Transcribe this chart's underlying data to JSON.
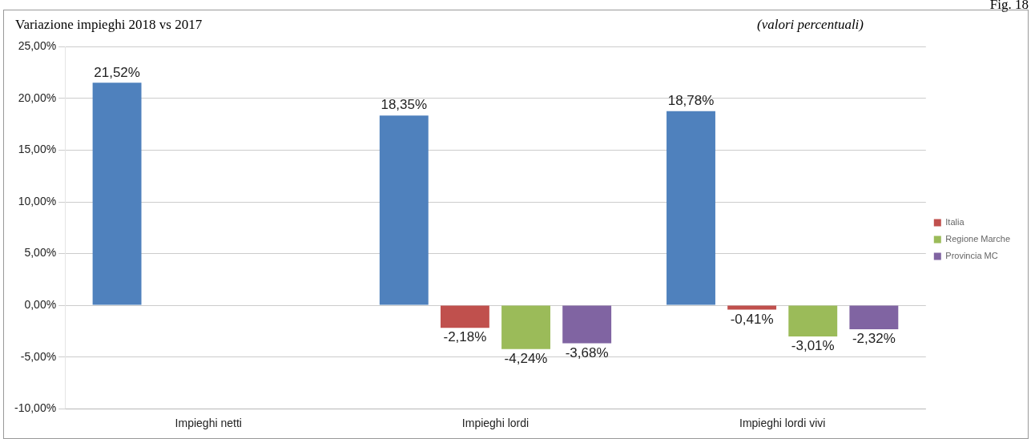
{
  "chart_data": {
    "type": "bar",
    "title": "Variazione impieghi 2018 vs 2017",
    "subtitle": "(valori percentuali)",
    "annotations": [
      "Fig. 18"
    ],
    "categories": [
      "Impieghi netti",
      "Impieghi lordi",
      "Impieghi lordi vivi"
    ],
    "series": [
      {
        "color": "#4f81bd",
        "values": [
          21.52,
          18.35,
          18.78
        ],
        "value_labels": [
          "21,52%",
          "18,35%",
          "18,78%"
        ]
      },
      {
        "name": "Italia",
        "color": "#c0504d",
        "values": [
          null,
          -2.18,
          -0.41
        ],
        "value_labels": [
          null,
          "-2,18%",
          "-0,41%"
        ]
      },
      {
        "name": "Regione Marche",
        "color": "#9bbb59",
        "values": [
          null,
          -4.24,
          -3.01
        ],
        "value_labels": [
          null,
          "-4,24%",
          "-3,01%"
        ]
      },
      {
        "name": "Provincia MC",
        "color": "#8064a2",
        "values": [
          null,
          -3.68,
          -2.32
        ],
        "value_labels": [
          null,
          "-3,68%",
          "-2,32%"
        ]
      }
    ],
    "ylim": [
      -10,
      25
    ],
    "yticks": [
      {
        "value": -10,
        "label": "-10,00%"
      },
      {
        "value": -5,
        "label": "-5,00%"
      },
      {
        "value": 0,
        "label": "0,00%"
      },
      {
        "value": 5,
        "label": "5,00%"
      },
      {
        "value": 10,
        "label": "10,00%"
      },
      {
        "value": 15,
        "label": "15,00%"
      },
      {
        "value": 20,
        "label": "20,00%"
      },
      {
        "value": 25,
        "label": "25,00%"
      }
    ],
    "grid": "y",
    "legend": "right"
  }
}
